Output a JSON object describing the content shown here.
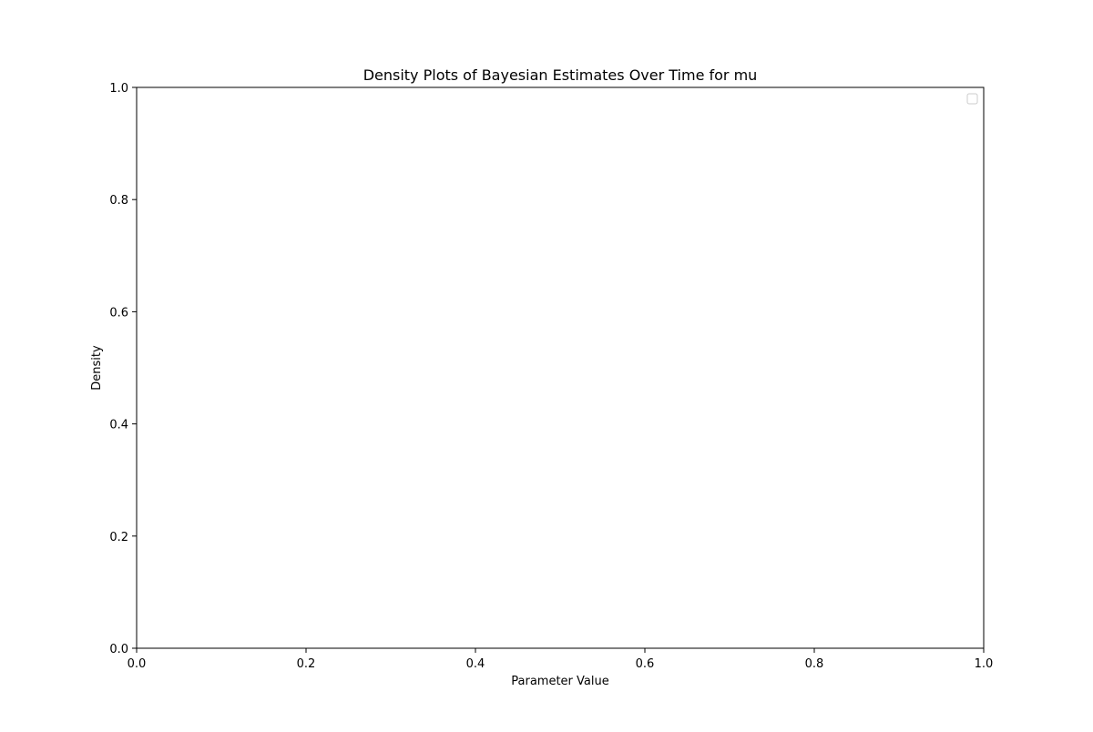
{
  "chart_data": {
    "type": "line",
    "title": "Density Plots of Bayesian Estimates Over Time for mu",
    "xlabel": "Parameter Value",
    "ylabel": "Density",
    "xlim": [
      0.0,
      1.0
    ],
    "ylim": [
      0.0,
      1.0
    ],
    "x_ticks": [
      "0.0",
      "0.2",
      "0.4",
      "0.6",
      "0.8",
      "1.0"
    ],
    "y_ticks": [
      "0.0",
      "0.2",
      "0.4",
      "0.6",
      "0.8",
      "1.0"
    ],
    "series": [],
    "legend": {
      "placement": "top-right",
      "entries": []
    },
    "grid": false
  }
}
